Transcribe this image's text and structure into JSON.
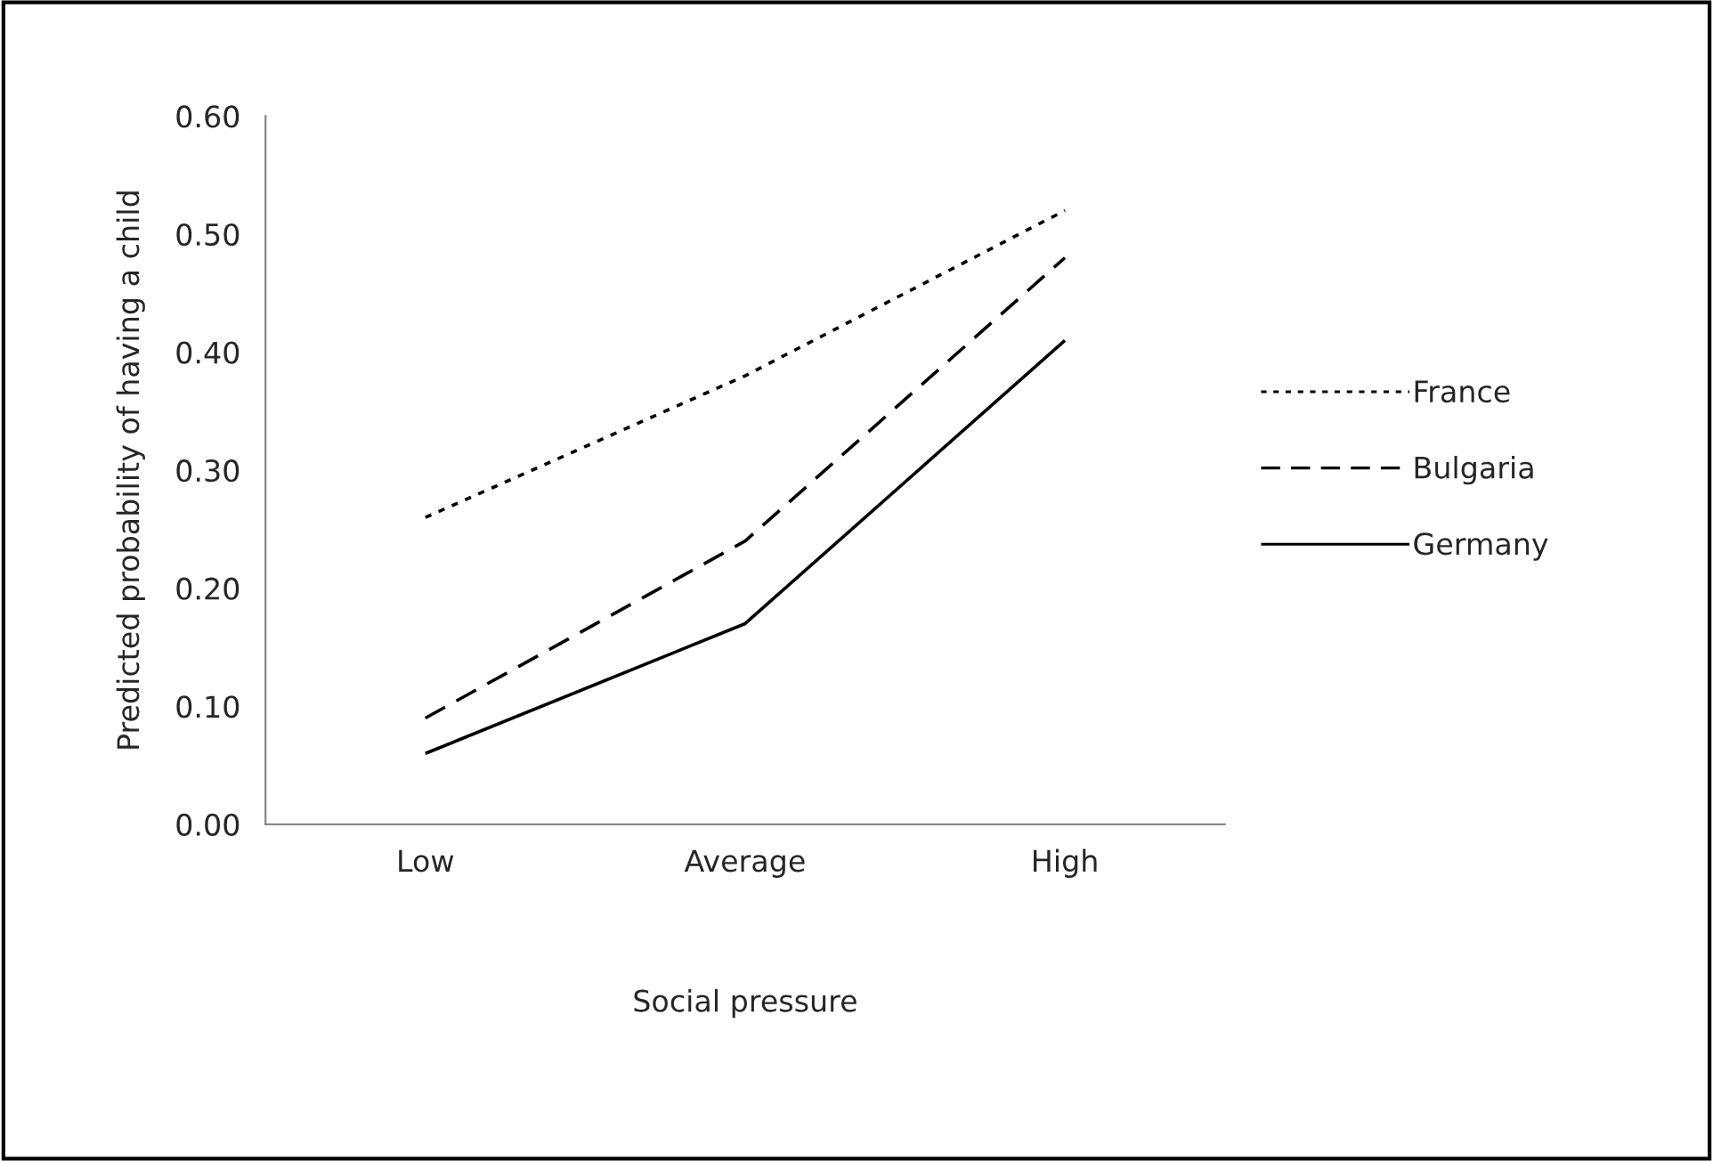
{
  "chart_data": {
    "type": "line",
    "xlabel": "Social pressure",
    "ylabel": "Predicted probability of having a child",
    "categories": [
      "Low",
      "Average",
      "High"
    ],
    "series": [
      {
        "name": "France",
        "color": "#000000",
        "line_style": "dotted",
        "values": [
          0.26,
          0.38,
          0.52
        ]
      },
      {
        "name": "Bulgaria",
        "color": "#000000",
        "line_style": "dashed",
        "values": [
          0.09,
          0.24,
          0.48
        ]
      },
      {
        "name": "Germany",
        "color": "#000000",
        "line_style": "solid",
        "values": [
          0.06,
          0.17,
          0.41
        ]
      }
    ],
    "ylim": [
      0,
      0.6
    ],
    "yticks": [
      {
        "value": 0,
        "label": "0.00"
      },
      {
        "value": 0.1,
        "label": "0.10"
      },
      {
        "value": 0.2,
        "label": "0.20"
      },
      {
        "value": 0.3,
        "label": "0.30"
      },
      {
        "value": 0.4,
        "label": "0.40"
      },
      {
        "value": 0.5,
        "label": "0.50"
      },
      {
        "value": 0.6,
        "label": "0.60"
      }
    ],
    "grid": false,
    "legend": "right",
    "marker": "none"
  }
}
